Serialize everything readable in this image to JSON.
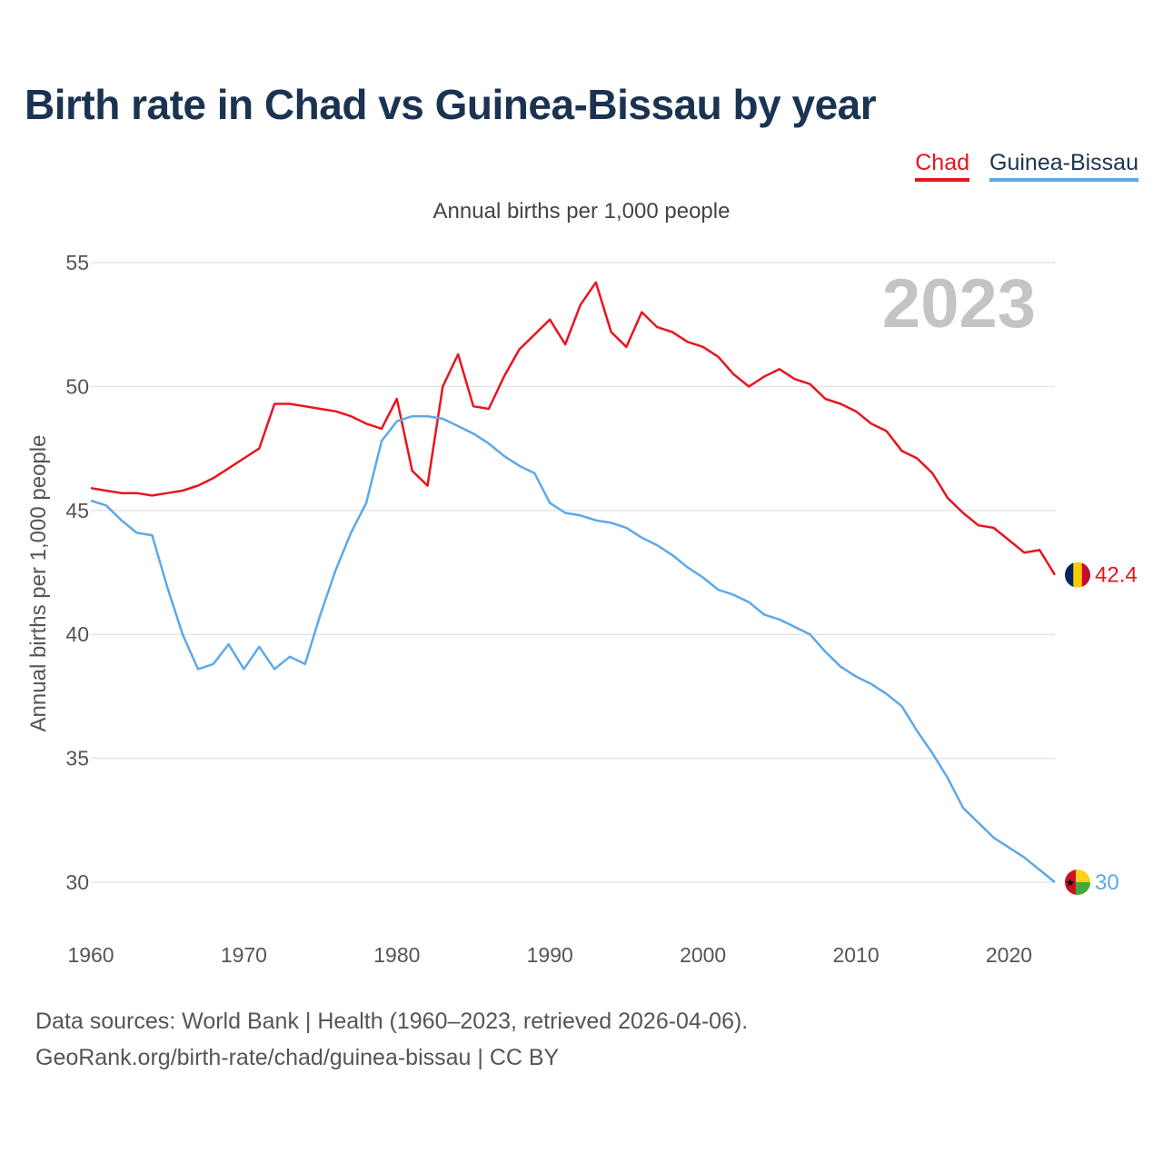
{
  "title": "Birth rate in Chad vs Guinea-Bissau by year",
  "legend": [
    {
      "name": "Chad",
      "color": "#e8141e"
    },
    {
      "name": "Guinea-Bissau",
      "color": "#5ea8e8"
    }
  ],
  "footer": {
    "line1": "Data sources: World Bank | Health (1960–2023, retrieved 2026-04-06).",
    "line2": "GeoRank.org/birth-rate/chad/guinea-bissau | CC BY"
  },
  "chart_data": {
    "type": "line",
    "title": "Birth rate in Chad vs Guinea-Bissau by year",
    "subtitle": "Annual births per 1,000 people",
    "xlabel": "",
    "ylabel": "Annual births per 1,000 people",
    "year_watermark": "2023",
    "xlim": [
      1960,
      2023
    ],
    "ylim": [
      28,
      56
    ],
    "x_ticks": [
      1960,
      1970,
      1980,
      1990,
      2000,
      2010,
      2020
    ],
    "y_ticks": [
      30,
      35,
      40,
      45,
      50,
      55
    ],
    "grid": true,
    "legend_position": "top-right",
    "x": [
      1960,
      1961,
      1962,
      1963,
      1964,
      1965,
      1966,
      1967,
      1968,
      1969,
      1970,
      1971,
      1972,
      1973,
      1974,
      1975,
      1976,
      1977,
      1978,
      1979,
      1980,
      1981,
      1982,
      1983,
      1984,
      1985,
      1986,
      1987,
      1988,
      1989,
      1990,
      1991,
      1992,
      1993,
      1994,
      1995,
      1996,
      1997,
      1998,
      1999,
      2000,
      2001,
      2002,
      2003,
      2004,
      2005,
      2006,
      2007,
      2008,
      2009,
      2010,
      2011,
      2012,
      2013,
      2014,
      2015,
      2016,
      2017,
      2018,
      2019,
      2020,
      2021,
      2022,
      2023
    ],
    "series": [
      {
        "name": "Chad",
        "color": "#e8141e",
        "end_label": "42.4",
        "values": [
          45.9,
          45.8,
          45.7,
          45.7,
          45.6,
          45.7,
          45.8,
          46.0,
          46.3,
          46.7,
          47.1,
          47.5,
          49.3,
          49.3,
          49.2,
          49.1,
          49.0,
          48.8,
          48.5,
          48.3,
          49.5,
          46.6,
          46.0,
          50.0,
          51.3,
          49.2,
          49.1,
          50.4,
          51.5,
          52.1,
          52.7,
          51.7,
          53.3,
          54.2,
          52.2,
          51.6,
          53.0,
          52.4,
          52.2,
          51.8,
          51.6,
          51.2,
          50.5,
          50.0,
          50.4,
          50.7,
          50.3,
          50.1,
          49.5,
          49.3,
          49.0,
          48.5,
          48.2,
          47.4,
          47.1,
          46.5,
          45.5,
          44.9,
          44.4,
          44.3,
          43.8,
          43.3,
          43.4,
          42.4
        ]
      },
      {
        "name": "Guinea-Bissau",
        "color": "#5ea8e8",
        "end_label": "30",
        "values": [
          45.4,
          45.2,
          44.6,
          44.1,
          44.0,
          41.9,
          40.0,
          38.6,
          38.8,
          39.6,
          38.6,
          39.5,
          38.6,
          39.1,
          38.8,
          40.8,
          42.6,
          44.1,
          45.3,
          47.8,
          48.6,
          48.8,
          48.8,
          48.7,
          48.4,
          48.1,
          47.7,
          47.2,
          46.8,
          46.5,
          45.3,
          44.9,
          44.8,
          44.6,
          44.5,
          44.3,
          43.9,
          43.6,
          43.2,
          42.7,
          42.3,
          41.8,
          41.6,
          41.3,
          40.8,
          40.6,
          40.3,
          40.0,
          39.3,
          38.7,
          38.3,
          38.0,
          37.6,
          37.1,
          36.1,
          35.2,
          34.2,
          33.0,
          32.4,
          31.8,
          31.4,
          31.0,
          30.5,
          30.0
        ]
      }
    ]
  }
}
